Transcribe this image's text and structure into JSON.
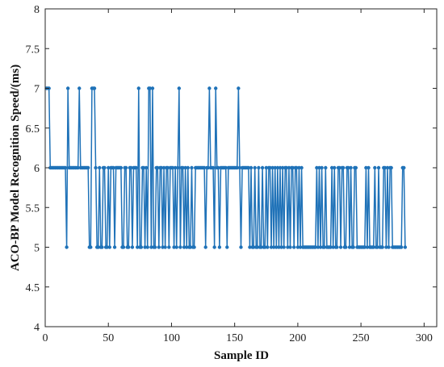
{
  "chart_data": {
    "type": "line",
    "title": "",
    "xlabel": "Sample ID",
    "ylabel": "ACO-BP Model Recognition Speed/(ms)",
    "xlim": [
      0,
      310
    ],
    "ylim": [
      4,
      8
    ],
    "xticks": [
      "0",
      "50",
      "100",
      "150",
      "200",
      "250",
      "300"
    ],
    "yticks": [
      "4",
      "4.5",
      "5",
      "5.5",
      "6",
      "6.5",
      "7",
      "7.5",
      "8"
    ],
    "grid": false,
    "legend": "none",
    "line_color": "#1f72b8",
    "marker": "dot",
    "series": [
      {
        "values": [
          7,
          7,
          7,
          6,
          6,
          6,
          6,
          6,
          6,
          6,
          6,
          6,
          6,
          6,
          6,
          6,
          5,
          7,
          6,
          6,
          6,
          6,
          6,
          6,
          6,
          6,
          7,
          6,
          6,
          6,
          6,
          6,
          6,
          6,
          5,
          5,
          7,
          7,
          7,
          6,
          5,
          5,
          6,
          5,
          5,
          6,
          6,
          5,
          5,
          6,
          5,
          6,
          6,
          6,
          5,
          6,
          6,
          6,
          6,
          6,
          5,
          5,
          6,
          6,
          5,
          5,
          6,
          6,
          5,
          6,
          6,
          6,
          5,
          7,
          5,
          5,
          6,
          6,
          5,
          6,
          5,
          7,
          7,
          5,
          7,
          5,
          5,
          6,
          6,
          5,
          6,
          6,
          5,
          6,
          5,
          6,
          6,
          5,
          6,
          6,
          6,
          5,
          6,
          5,
          6,
          7,
          5,
          6,
          6,
          5,
          6,
          5,
          6,
          5,
          5,
          6,
          5,
          5,
          6,
          6,
          6,
          6,
          6,
          6,
          6,
          6,
          5,
          6,
          6,
          7,
          6,
          6,
          6,
          5,
          7,
          6,
          6,
          5,
          6,
          6,
          6,
          6,
          6,
          5,
          6,
          6,
          6,
          6,
          6,
          6,
          6,
          6,
          7,
          6,
          5,
          6,
          6,
          6,
          6,
          6,
          6,
          5,
          6,
          5,
          5,
          6,
          5,
          5,
          6,
          5,
          5,
          6,
          5,
          5,
          6,
          5,
          6,
          6,
          5,
          6,
          5,
          6,
          5,
          6,
          5,
          6,
          5,
          6,
          5,
          6,
          6,
          5,
          6,
          5,
          6,
          6,
          5,
          6,
          6,
          5,
          6,
          5,
          6,
          5,
          5,
          5,
          5,
          5,
          5,
          5,
          5,
          5,
          5,
          5,
          6,
          5,
          6,
          5,
          6,
          5,
          5,
          6,
          5,
          5,
          5,
          5,
          6,
          5,
          6,
          5,
          5,
          6,
          6,
          5,
          6,
          6,
          5,
          5,
          6,
          6,
          5,
          6,
          5,
          5,
          6,
          6,
          5,
          5,
          5,
          5,
          5,
          5,
          5,
          6,
          5,
          6,
          5,
          5,
          5,
          5,
          6,
          5,
          5,
          6,
          5,
          5,
          5,
          6,
          6,
          5,
          6,
          5,
          6,
          6,
          5,
          5,
          5,
          5,
          5,
          5,
          5,
          5,
          6,
          6,
          5
        ]
      }
    ]
  }
}
